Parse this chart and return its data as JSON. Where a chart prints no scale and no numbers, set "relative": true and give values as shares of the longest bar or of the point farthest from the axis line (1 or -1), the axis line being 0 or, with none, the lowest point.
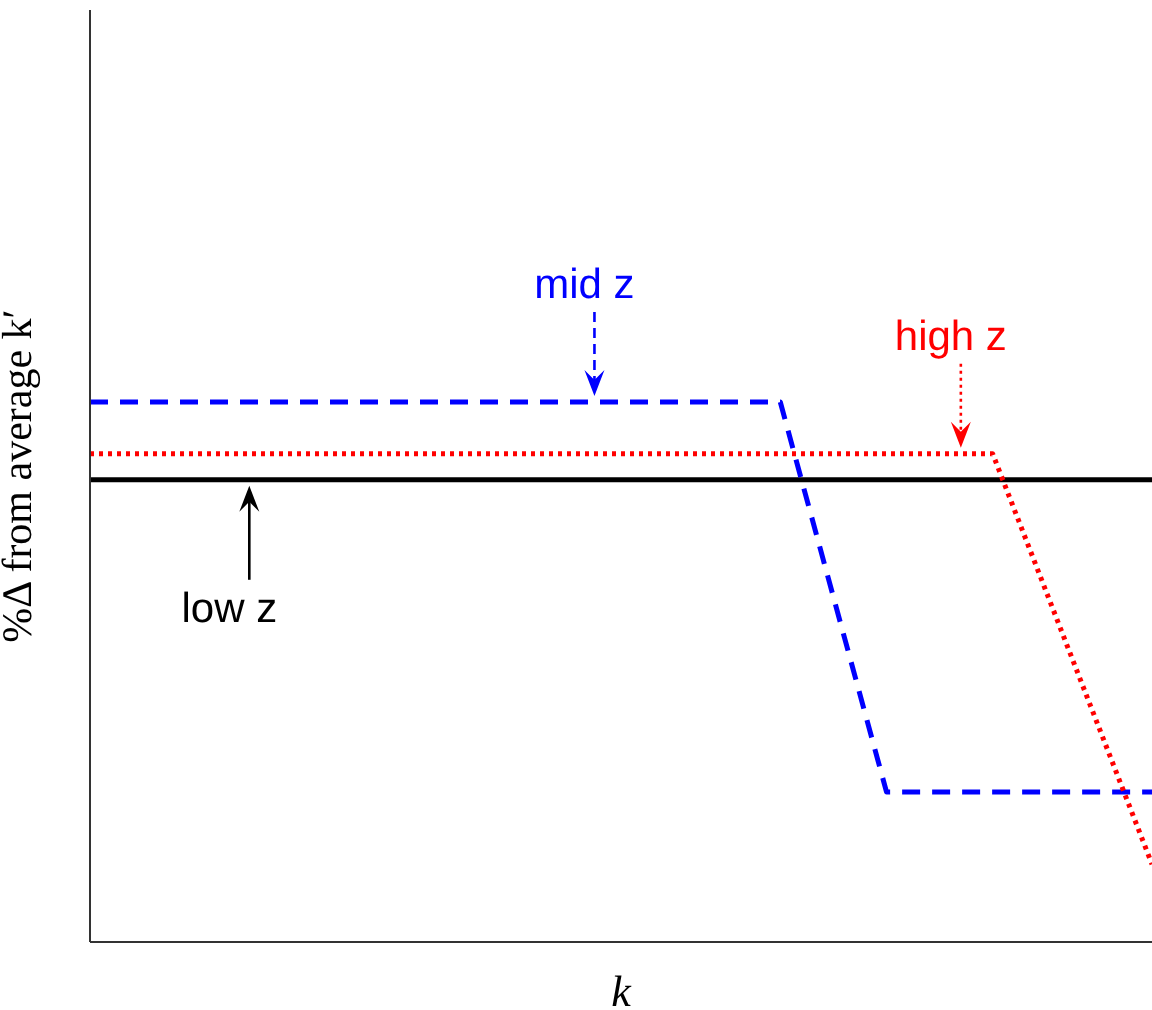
{
  "chart_data": {
    "type": "line",
    "relative": true,
    "xlabel": "k",
    "ylabel": "%Δ from average k′",
    "grid": false,
    "marker": "none",
    "categories": [
      null,
      null,
      null,
      null,
      null,
      null,
      null,
      null,
      null,
      null,
      null,
      null,
      null,
      null,
      null,
      null,
      null,
      null,
      null,
      null,
      null
    ],
    "series": [
      {
        "name": "low z",
        "color": "#000000",
        "line_style": "solid",
        "values": [
          0.856,
          null,
          null,
          null,
          null,
          null,
          null,
          null,
          null,
          null,
          null,
          null,
          null,
          null,
          null,
          null,
          null,
          null,
          null,
          null,
          0.856
        ]
      },
      {
        "name": "mid z",
        "color": "#0000ff",
        "line_style": "dashed",
        "values": [
          1,
          null,
          null,
          null,
          null,
          null,
          null,
          null,
          null,
          null,
          null,
          null,
          null,
          1,
          null,
          0.278,
          null,
          null,
          null,
          null,
          0.278
        ]
      },
      {
        "name": "high z",
        "color": "#ff0000",
        "line_style": "dotted",
        "values": [
          0.904,
          null,
          null,
          null,
          null,
          null,
          null,
          null,
          null,
          null,
          null,
          null,
          null,
          null,
          null,
          null,
          null,
          0.904,
          null,
          null,
          0.144
        ]
      }
    ]
  }
}
